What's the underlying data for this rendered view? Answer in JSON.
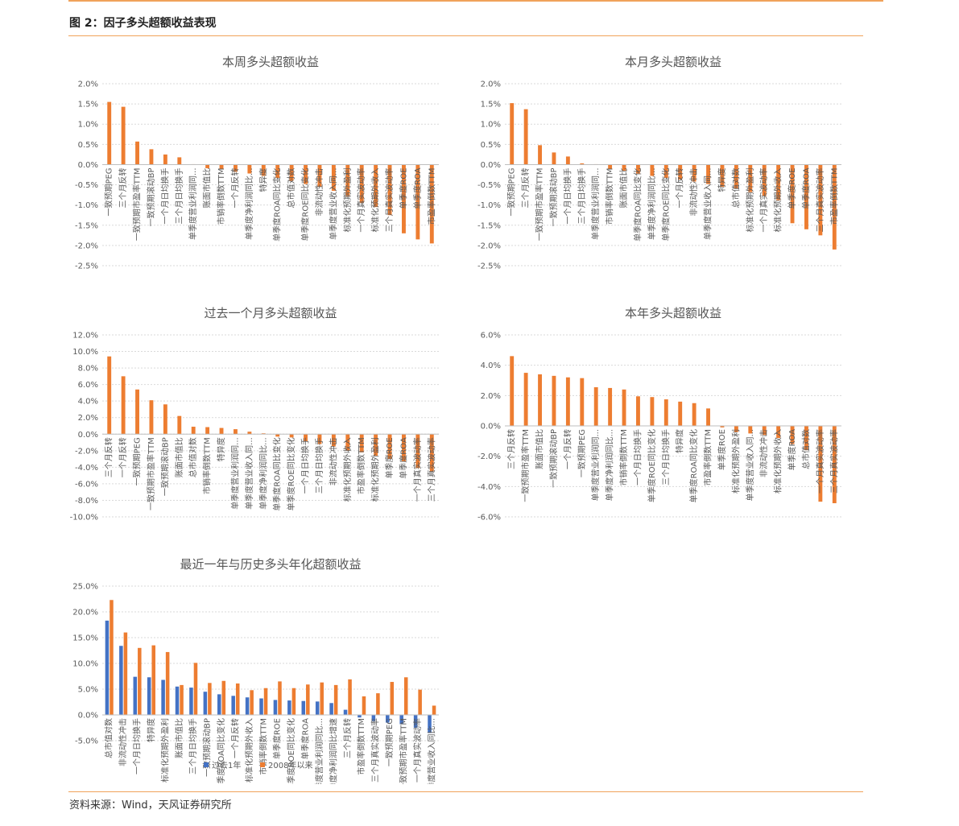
{
  "figure_title": "图 2：因子多头超额收益表现",
  "source": "资料来源：Wind，天风证券研究所",
  "colors": {
    "orange": "#ed7d31",
    "blue": "#4472c4",
    "rule": "#f0a25a"
  },
  "chart_data": [
    {
      "type": "bar",
      "title": "本周多头超额收益",
      "xlabel": "",
      "ylabel": "",
      "ylim": [
        -2.5,
        2.0
      ],
      "yticks": [
        2.0,
        1.5,
        1.0,
        0.5,
        0.0,
        -0.5,
        -1.0,
        -1.5,
        -2.0,
        -2.5
      ],
      "tick_suffix": "%",
      "tick_decimals": 1,
      "grid": true,
      "categories": [
        "一致预期PEG",
        "三个月反转",
        "一致预期市盈率TTM",
        "一致预期滚动BP",
        "一个月日均换手",
        "三个月日均换手",
        "单季度营业利润同...",
        "账面市值比",
        "市销率倒数TTM",
        "一个月反转",
        "单季度净利润同比...",
        "特异度",
        "单季度ROA同比变化",
        "总市值对数",
        "单季度ROE同比变化",
        "非流动性冲击",
        "单季度营业收入同...",
        "标准化预期外盈利",
        "一个月真实波动率",
        "标准化预期外收入",
        "三个月真实波动率",
        "单季度ROE",
        "单季度ROA",
        "市盈率倒数TTM"
      ],
      "series": [
        {
          "values": [
            1.55,
            1.43,
            0.57,
            0.38,
            0.25,
            0.18,
            0.01,
            -0.09,
            -0.12,
            -0.18,
            -0.22,
            -0.28,
            -0.33,
            -0.4,
            -0.48,
            -0.55,
            -0.65,
            -0.78,
            -0.95,
            -1.05,
            -1.25,
            -1.7,
            -1.85,
            -1.95
          ]
        }
      ]
    },
    {
      "type": "bar",
      "title": "本月多头超额收益",
      "xlabel": "",
      "ylabel": "",
      "ylim": [
        -2.5,
        2.0
      ],
      "yticks": [
        2.0,
        1.5,
        1.0,
        0.5,
        0.0,
        -0.5,
        -1.0,
        -1.5,
        -2.0,
        -2.5
      ],
      "tick_suffix": "%",
      "tick_decimals": 1,
      "grid": true,
      "categories": [
        "一致预期PEG",
        "三个月反转",
        "一致预期市盈率TTM",
        "一致预期滚动BP",
        "一个月日均换手",
        "三个月日均换手",
        "单季度营业利润同...",
        "市销率倒数TTM",
        "账面市值比",
        "单季度ROA同比变化",
        "单季度净利润同比...",
        "单季度ROE同比变化",
        "一个月反转",
        "非流动性冲击",
        "单季度营业收入同...",
        "特异度",
        "总市值对数",
        "标准化预期外盈利",
        "一个月真实波动率",
        "标准化预期外收入",
        "单季度ROE",
        "单季度ROA",
        "三个月真实波动率",
        "市盈率倒数TTM"
      ],
      "series": [
        {
          "values": [
            1.52,
            1.37,
            0.48,
            0.3,
            0.2,
            0.03,
            0.01,
            -0.12,
            -0.15,
            -0.22,
            -0.28,
            -0.33,
            -0.37,
            -0.42,
            -0.48,
            -0.55,
            -0.6,
            -0.68,
            -0.78,
            -0.88,
            -1.45,
            -1.6,
            -1.75,
            -2.1
          ]
        }
      ]
    },
    {
      "type": "bar",
      "title": "过去一个月多头超额收益",
      "xlabel": "",
      "ylabel": "",
      "ylim": [
        -10,
        12
      ],
      "yticks": [
        12,
        10,
        8,
        6,
        4,
        2,
        0,
        -2,
        -4,
        -6,
        -8,
        -10
      ],
      "tick_suffix": "%",
      "tick_decimals": 1,
      "grid": true,
      "categories": [
        "三个月反转",
        "一个月反转",
        "一致预期PEG",
        "一致预期市盈率TTM",
        "一致预期滚动BP",
        "账面市值比",
        "总市值对数",
        "市销率倒数TTM",
        "特异度",
        "单季度营业利润同...",
        "单季度营业收入同...",
        "单季度净利润同比...",
        "单季度ROA同比变化",
        "单季度ROE同比变化",
        "一个月日均换手",
        "三个月日均换手",
        "非流动性冲击",
        "标准化预期外收入",
        "市盈率倒数TTM",
        "标准化预期外盈利",
        "单季度ROE",
        "单季度ROA",
        "一个月真实波动率",
        "三个月真实波动率"
      ],
      "series": [
        {
          "values": [
            9.4,
            7.0,
            5.4,
            4.1,
            3.6,
            2.2,
            0.9,
            0.85,
            0.75,
            0.6,
            0.3,
            0.1,
            -0.3,
            -0.4,
            -0.9,
            -1.2,
            -1.5,
            -2.0,
            -2.2,
            -2.6,
            -3.0,
            -3.3,
            -4.1,
            -4.5
          ]
        }
      ]
    },
    {
      "type": "bar",
      "title": "本年多头超额收益",
      "xlabel": "",
      "ylabel": "",
      "ylim": [
        -6,
        6
      ],
      "yticks": [
        6,
        4,
        2,
        0,
        -2,
        -4,
        -6
      ],
      "tick_suffix": "%",
      "tick_decimals": 1,
      "grid": true,
      "categories": [
        "三个月反转",
        "一致预期市盈率TTM",
        "账面市值比",
        "一致预期滚动BP",
        "一个月反转",
        "一致预期PEG",
        "单季度营业利润同...",
        "单季度净利润同比...",
        "市销率倒数TTM",
        "一个月日均换手",
        "单季度ROE同比变化",
        "三个月日均换手",
        "特异度",
        "单季度ROA同比变化",
        "市盈率倒数TTM",
        "单季度ROE",
        "标准化预期外盈利",
        "单季度营业收入同...",
        "非流动性冲击",
        "标准化预期外收入",
        "单季度ROA",
        "总市值对数",
        "一个月真实波动率",
        "三个月真实波动率"
      ],
      "series": [
        {
          "values": [
            4.6,
            3.5,
            3.4,
            3.3,
            3.2,
            3.15,
            2.55,
            2.5,
            2.4,
            1.95,
            1.9,
            1.75,
            1.6,
            1.5,
            1.15,
            -0.1,
            -0.4,
            -0.5,
            -0.6,
            -0.8,
            -1.2,
            -1.6,
            -5.0,
            -5.1
          ]
        }
      ]
    },
    {
      "type": "bar",
      "title": "最近一年与历史多头年化超额收益",
      "xlabel": "",
      "ylabel": "",
      "ylim": [
        -5,
        25
      ],
      "yticks": [
        25,
        20,
        15,
        10,
        5,
        0,
        -5
      ],
      "tick_suffix": "%",
      "tick_decimals": 1,
      "grid": true,
      "legend": "bottom",
      "categories": [
        "总市值对数",
        "非流动性冲击",
        "一个月日均换手",
        "特异度",
        "标准化预期外盈利",
        "账面市值比",
        "三个月日均换手",
        "一致预期滚动BP",
        "单季度ROA同比变化",
        "一个月反转",
        "标准化预期外收入",
        "市销率倒数TTM",
        "单季度ROE",
        "单季度ROE同比变化",
        "单季度ROA",
        "单季度营业利润同比...",
        "单季度净利润同比增速",
        "三个月反转",
        "市盈率倒数TTM",
        "三个月真实波动率",
        "一致预期PEG",
        "一致预期市盈率TTM",
        "一个月真实波动率",
        "单季度营业收入同比..."
      ],
      "series": [
        {
          "name": "过去1年",
          "color": "#4472c4",
          "values": [
            18.3,
            13.4,
            7.4,
            7.3,
            6.8,
            5.5,
            5.3,
            4.5,
            4.0,
            3.7,
            3.4,
            3.2,
            2.9,
            2.8,
            2.7,
            2.6,
            2.3,
            1.0,
            -0.5,
            -1.2,
            -1.5,
            -1.8,
            -2.5,
            -3.5
          ]
        },
        {
          "name": "2008年以来",
          "color": "#ed7d31",
          "values": [
            22.3,
            16.0,
            13.0,
            13.5,
            12.2,
            5.8,
            10.1,
            6.2,
            6.6,
            6.1,
            4.8,
            5.2,
            6.5,
            5.2,
            5.9,
            6.3,
            5.8,
            6.9,
            3.6,
            4.2,
            6.4,
            7.3,
            4.9,
            1.8
          ]
        }
      ]
    }
  ]
}
